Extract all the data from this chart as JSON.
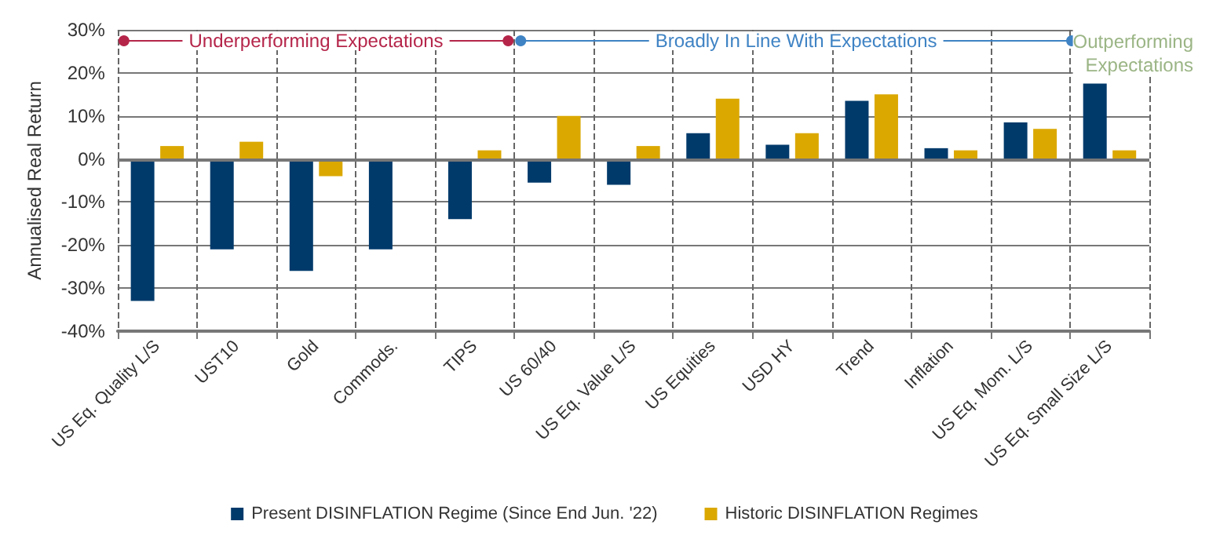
{
  "chart_data": {
    "type": "bar",
    "ylabel": "Annualised Real Return",
    "categories": [
      "US Eq. Quality L/S",
      "UST10",
      "Gold",
      "Commods.",
      "TIPS",
      "US 60/40",
      "US Eq. Value L/S",
      "US Equities",
      "USD HY",
      "Trend",
      "Inflation",
      "US Eq. Mom. L/S",
      "US Eq. Small Size L/S"
    ],
    "series": [
      {
        "name": "Present DISINFLATION Regime (Since End Jun. '22)",
        "color": "#003a6b",
        "values": [
          -33,
          -21,
          -26,
          -21,
          -14,
          -5.5,
          -6,
          6,
          3.3,
          13.5,
          2.5,
          8.5,
          17.5
        ]
      },
      {
        "name": "Historic DISINFLATION Regimes",
        "color": "#dba800",
        "values": [
          3,
          4,
          -4,
          -0.5,
          2,
          10,
          3,
          14,
          6,
          15,
          2,
          7,
          2
        ]
      }
    ],
    "ylim": [
      -40,
      30
    ],
    "yticks": [
      {
        "value": -40,
        "label": "-40%"
      },
      {
        "value": -30,
        "label": "-30%"
      },
      {
        "value": -20,
        "label": "-20%"
      },
      {
        "value": -10,
        "label": "-10%"
      },
      {
        "value": 0,
        "label": "0%"
      },
      {
        "value": 10,
        "label": "10%"
      },
      {
        "value": 20,
        "label": "20%"
      },
      {
        "value": 30,
        "label": "30%"
      }
    ],
    "grid": true,
    "legend": "bottom",
    "annotations": [
      "Underperforming Expectations",
      "Broadly In Line With Expectations",
      "Outperforming\nExpectations"
    ]
  }
}
